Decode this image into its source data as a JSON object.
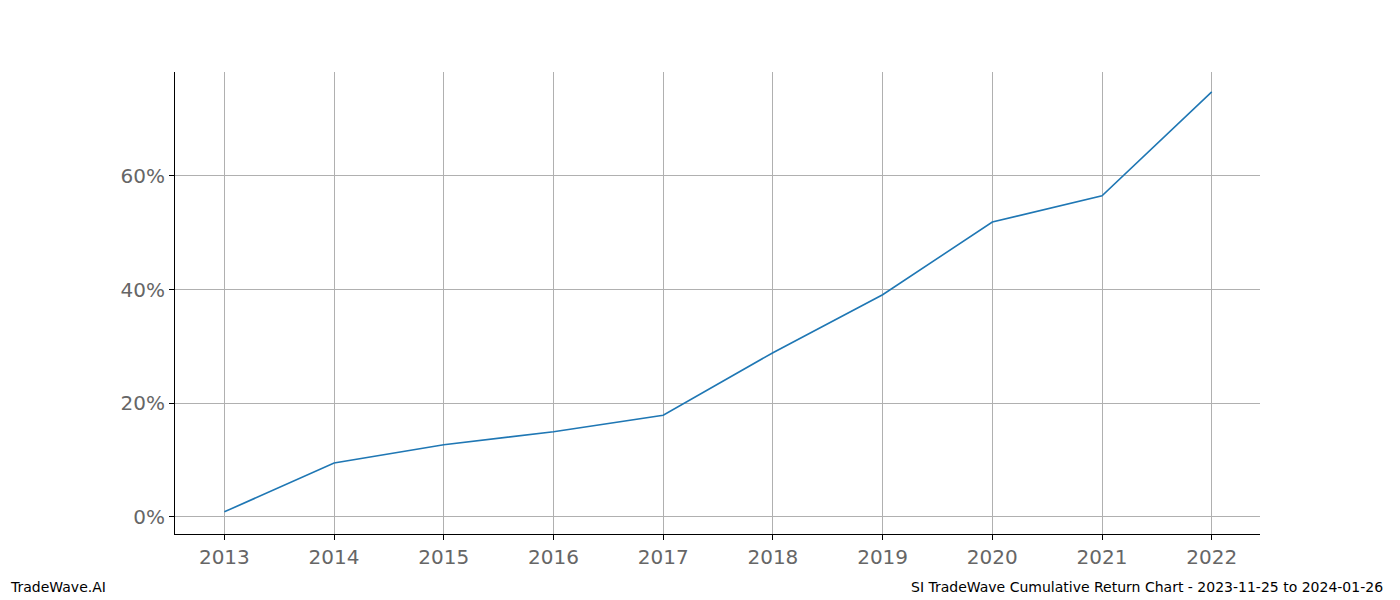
{
  "chart_data": {
    "type": "line",
    "x": [
      2013,
      2014,
      2015,
      2016,
      2017,
      2018,
      2019,
      2020,
      2021,
      2022
    ],
    "values": [
      0.9,
      9.5,
      12.7,
      15.0,
      17.9,
      28.9,
      39.1,
      51.9,
      56.5,
      74.8
    ],
    "color": "#1f77b4",
    "xlim": [
      2012.55,
      2022.44
    ],
    "xticks": [
      2013,
      2014,
      2015,
      2016,
      2017,
      2018,
      2019,
      2020,
      2021,
      2022
    ],
    "ylim": [
      -3,
      78.3
    ],
    "yticks": [
      {
        "value": 0,
        "label": "0%"
      },
      {
        "value": 20,
        "label": "20%"
      },
      {
        "value": 40,
        "label": "40%"
      },
      {
        "value": 60,
        "label": "60%"
      }
    ],
    "grid": true,
    "annotations": [
      "TradeWave.AI",
      "SI TradeWave Cumulative Return Chart - 2023-11-25 to 2024-01-26"
    ]
  }
}
